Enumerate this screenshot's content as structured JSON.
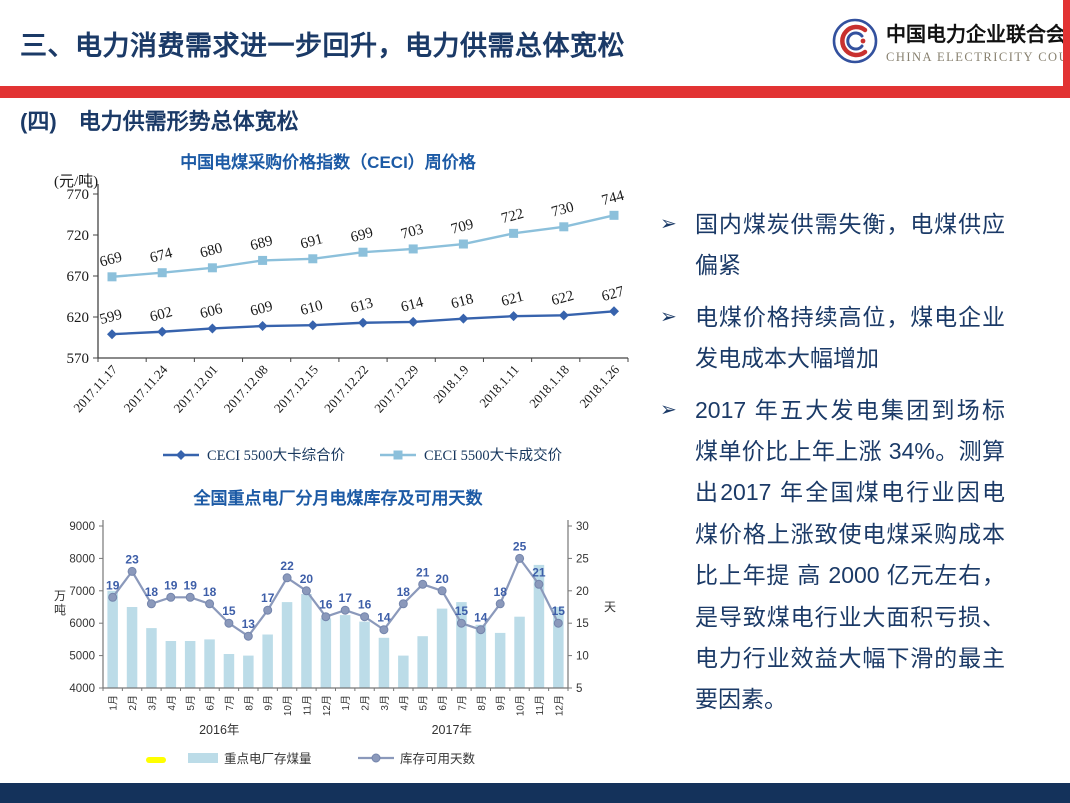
{
  "header": {
    "title": "三、电力消费需求进一步回升，电力供需总体宽松",
    "logo": {
      "org_cn": "中国电力企业联合会",
      "org_en": "CHINA ELECTRICITY COUNCIL"
    }
  },
  "section_title": "(四)　电力供需形势总体宽松",
  "bullets": [
    {
      "text": "国内煤炭供需失衡，电煤供应偏紧"
    },
    {
      "text": "电煤价格持续高位，煤电企业发电成本大幅增加"
    },
    {
      "text": "2017 年五大发电集团到场标煤单价比上年上涨 34%。测算出2017 年全国煤电行业因电煤价格上涨致使电煤采购成本比上年提 高 2000 亿元左右，是导致煤电行业大面积亏损、电力行业效益大幅下滑的最主 要因素。"
    }
  ],
  "colors": {
    "accent_red": "#E23333",
    "title_navy": "#1B3A67",
    "footer_navy": "#14325B",
    "chart_title_blue": "#1C5AA5",
    "ceci_composite_line": "#3763AD",
    "ceci_deal_line": "#8CC0DB",
    "coal_bar_fill": "#BCDCE8",
    "days_line": "#8B99BB",
    "days_label_blue": "#3D5EA8"
  },
  "chart_data": [
    {
      "type": "line",
      "title": "中国电煤采购价格指数（CECI）周价格",
      "unit_label": "(元/吨)",
      "ylim": [
        570,
        770
      ],
      "yticks": [
        770,
        720,
        670,
        620,
        570
      ],
      "grid": false,
      "legend_position": "bottom",
      "categories": [
        "2017.11.17",
        "2017.11.24",
        "2017.12.01",
        "2017.12.08",
        "2017.12.15",
        "2017.12.22",
        "2017.12.29",
        "2018.1.9",
        "2018.1.11",
        "2018.1.18",
        "2018.1.26"
      ],
      "series": [
        {
          "name": "CECI 5500大卡综合价",
          "marker": "diamond",
          "color": "#3763AD",
          "values": [
            599,
            602,
            606,
            609,
            610,
            613,
            614,
            618,
            621,
            622,
            627
          ]
        },
        {
          "name": "CECI 5500大卡成交价",
          "marker": "square",
          "color": "#8CC0DB",
          "values": [
            669,
            674,
            680,
            689,
            691,
            699,
            703,
            709,
            722,
            730,
            744
          ]
        }
      ]
    },
    {
      "type": "bar",
      "title": "全国重点电厂分月电煤库存及可用天数",
      "grid": false,
      "legend_position": "bottom",
      "categories": [
        "1月",
        "2月",
        "3月",
        "4月",
        "5月",
        "6月",
        "7月",
        "8月",
        "9月",
        "10月",
        "11月",
        "12月",
        "1月",
        "2月",
        "3月",
        "4月",
        "5月",
        "6月",
        "7月",
        "8月",
        "9月",
        "10月",
        "11月",
        "12月"
      ],
      "group_labels": [
        "2016年",
        "2017年"
      ],
      "left_axis": {
        "label": "万吨",
        "lim": [
          4000,
          9000
        ],
        "ticks": [
          4000,
          5000,
          6000,
          7000,
          8000,
          9000
        ]
      },
      "right_axis": {
        "label": "天",
        "lim": [
          5,
          30
        ],
        "ticks": [
          5,
          10,
          15,
          20,
          25,
          30
        ]
      },
      "series": [
        {
          "name": "重点电厂存煤量",
          "kind": "bar",
          "axis": "left",
          "color": "#BCDCE8",
          "values": [
            7000,
            6500,
            5850,
            5450,
            5450,
            5500,
            5050,
            5000,
            5650,
            6650,
            6900,
            6150,
            6250,
            6050,
            5550,
            5000,
            5600,
            6450,
            6650,
            5950,
            5700,
            6200,
            7800,
            6500
          ]
        },
        {
          "name": "库存可用天数",
          "kind": "line",
          "axis": "right",
          "color": "#8B99BB",
          "values": [
            19,
            23,
            18,
            19,
            19,
            18,
            15,
            13,
            17,
            22,
            20,
            16,
            17,
            16,
            14,
            18,
            21,
            20,
            15,
            14,
            18,
            25,
            21,
            15
          ]
        }
      ]
    }
  ]
}
